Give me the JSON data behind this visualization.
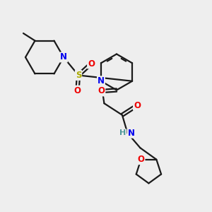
{
  "background_color": "#eeeeee",
  "bond_color": "#1a1a1a",
  "atom_colors": {
    "N": "#0000ee",
    "O": "#ee0000",
    "S": "#aaaa00",
    "C": "#1a1a1a",
    "H": "#4d9999"
  },
  "figsize": [
    3.0,
    3.0
  ],
  "dpi": 100,
  "xlim": [
    0,
    10
  ],
  "ylim": [
    0,
    10
  ]
}
